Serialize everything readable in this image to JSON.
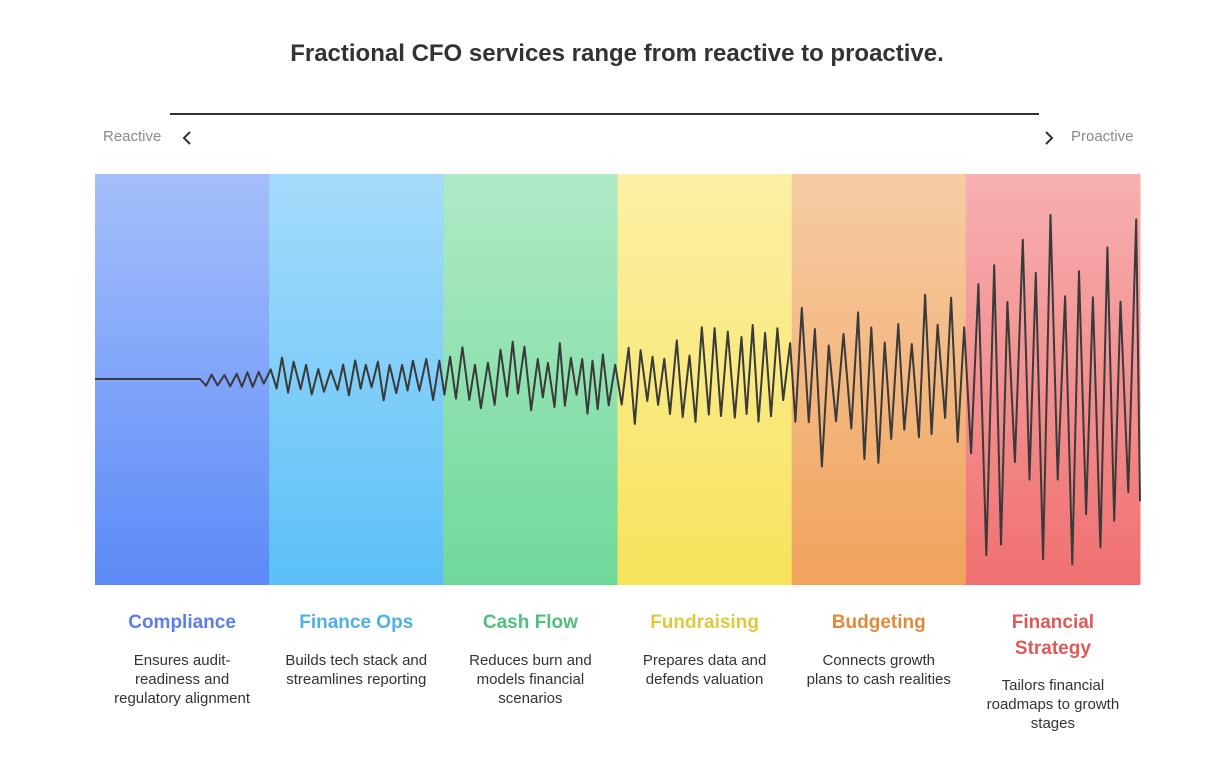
{
  "title": "Fractional CFO services range from reactive to proactive.",
  "scale": {
    "left_label": "Reactive",
    "right_label": "Proactive"
  },
  "stages": [
    {
      "name": "Compliance",
      "description": "Ensures audit-readiness and regulatory alignment",
      "color": "#5b8af7",
      "title_color": "#5b7fe6",
      "intensity": 1
    },
    {
      "name": "Finance Ops",
      "description": "Builds tech stack and streamlines reporting",
      "color": "#5bc0f7",
      "title_color": "#4fb0e8",
      "intensity": 2
    },
    {
      "name": "Cash Flow",
      "description": "Reduces burn and models financial scenarios",
      "color": "#6fd999",
      "title_color": "#4fbf7f",
      "intensity": 3
    },
    {
      "name": "Fundraising",
      "description": "Prepares data and defends valuation",
      "color": "#f7e35b",
      "title_color": "#e0c93a",
      "intensity": 4
    },
    {
      "name": "Budgeting",
      "description": "Connects growth plans to cash realities",
      "color": "#f0a35b",
      "title_color": "#e08a3a",
      "intensity": 5
    },
    {
      "name": "Financial Strategy",
      "description": "Tailors financial roadmaps to growth stages",
      "color": "#f07070",
      "title_color": "#e05a5a",
      "intensity": 6
    }
  ]
}
